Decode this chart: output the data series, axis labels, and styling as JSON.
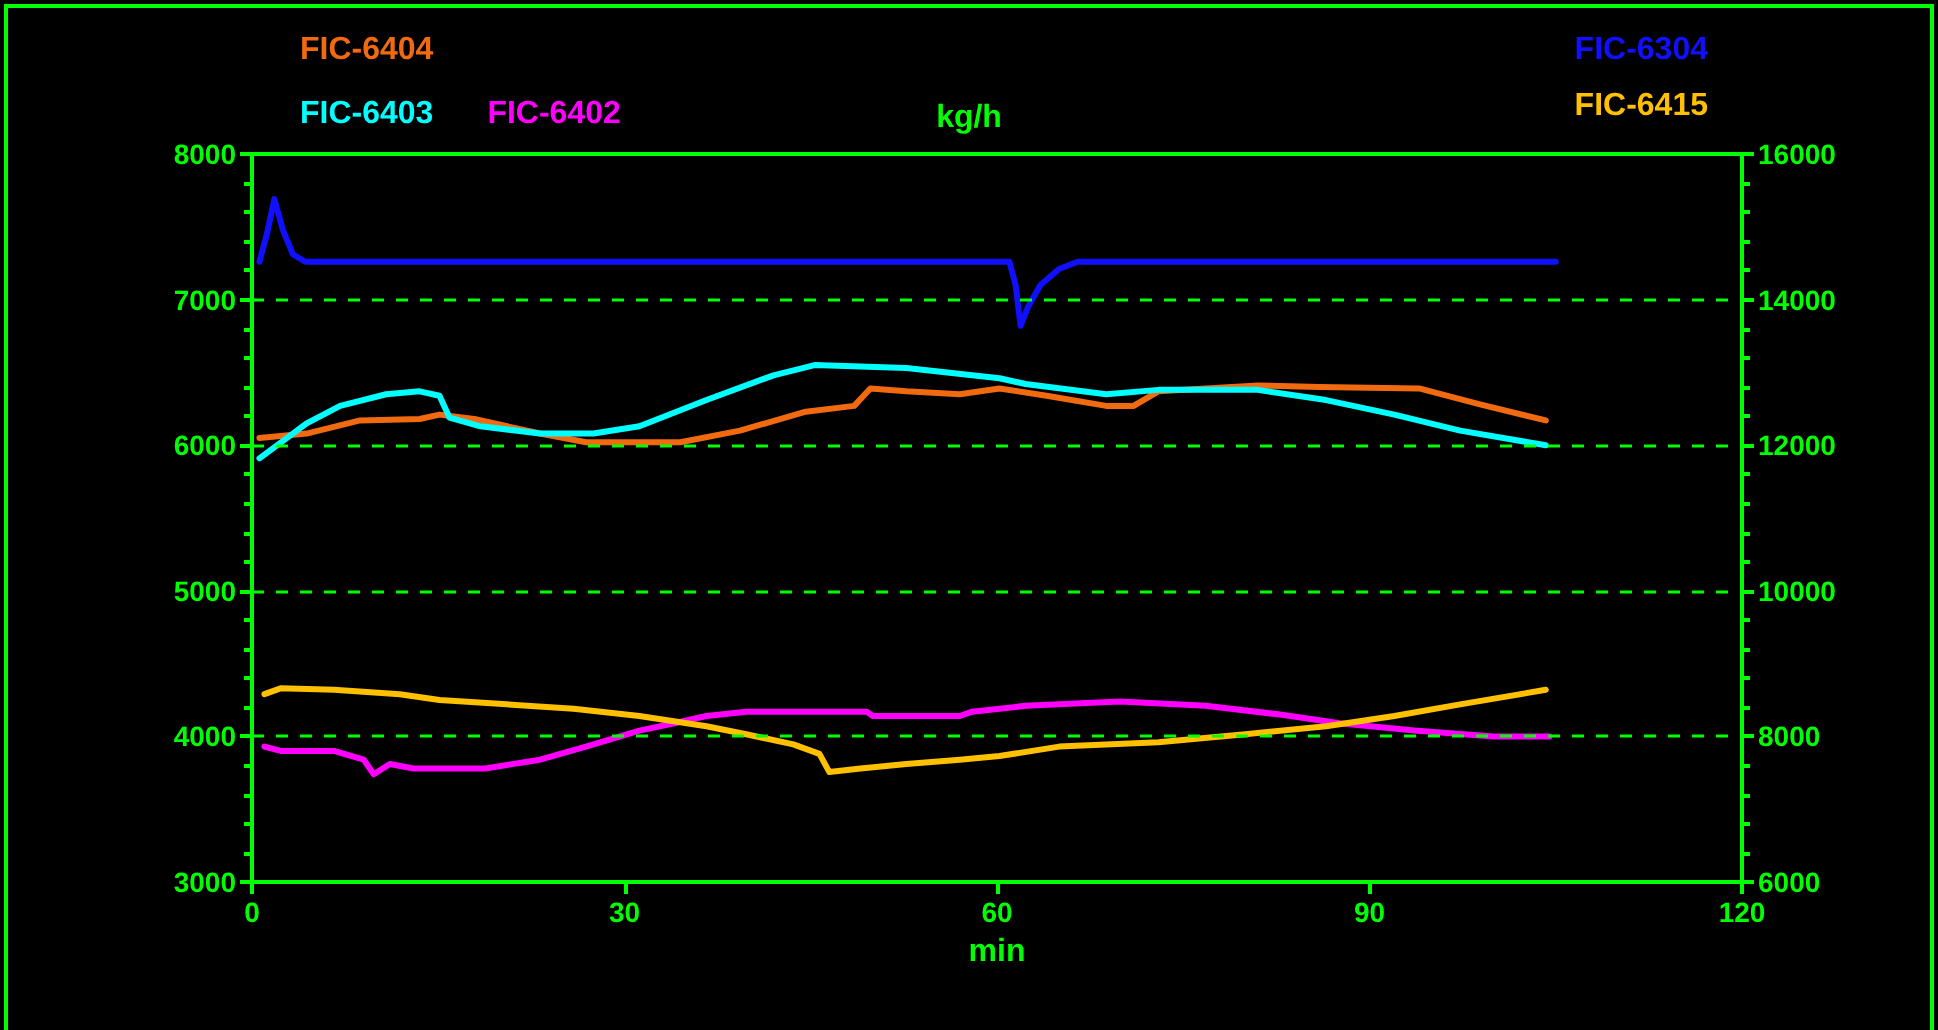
{
  "chart_data": {
    "type": "line",
    "title": "kg/h",
    "xlabel": "min",
    "xlim": [
      0,
      120
    ],
    "xticks": [
      0,
      30,
      60,
      90,
      120
    ],
    "ylim": [
      3000,
      8000
    ],
    "yticks": [
      3000,
      4000,
      5000,
      6000,
      7000,
      8000
    ],
    "y2lim": [
      6000,
      16000
    ],
    "y2ticks": [
      6000,
      8000,
      10000,
      12000,
      14000,
      16000
    ],
    "grid": "y",
    "legend": "top",
    "marker": "none",
    "line_style": "solid",
    "series": [
      {
        "name": "FIC-6404",
        "color": "#f26a10",
        "x": [
          0.6,
          4.4,
          8.7,
          13.5,
          15.1,
          17.9,
          23.2,
          26.9,
          34.5,
          39.3,
          44.6,
          48.5,
          49.8,
          52.7,
          57,
          60.2,
          64,
          68.8,
          71,
          73,
          81,
          86,
          94,
          98.9,
          104.2
        ],
        "values": [
          6050,
          6080,
          6170,
          6180,
          6210,
          6180,
          6080,
          6020,
          6020,
          6100,
          6230,
          6270,
          6390,
          6370,
          6350,
          6390,
          6340,
          6270,
          6270,
          6370,
          6410,
          6400,
          6390,
          6280,
          6170
        ]
      },
      {
        "name": "FIC-6403",
        "color": "#00ffff",
        "x": [
          0.6,
          4.4,
          7.1,
          10.8,
          13.5,
          15.1,
          15.9,
          18.4,
          23.2,
          27.5,
          31.2,
          36.6,
          42,
          45.3,
          52.7,
          60.2,
          62.3,
          68.8,
          73,
          81,
          86.5,
          92,
          97.3,
          104.2
        ],
        "values": [
          5910,
          6150,
          6270,
          6350,
          6370,
          6340,
          6190,
          6130,
          6080,
          6080,
          6130,
          6310,
          6480,
          6550,
          6530,
          6460,
          6420,
          6350,
          6380,
          6380,
          6310,
          6210,
          6100,
          6000
        ]
      },
      {
        "name": "FIC-6402",
        "color": "#ff00ff",
        "x": [
          1,
          2.3,
          6.6,
          9,
          9.8,
          11.1,
          13,
          18.8,
          23.2,
          26.9,
          31.2,
          34,
          36.6,
          39.8,
          49.5,
          50,
          57,
          58,
          62.3,
          69.9,
          76.8,
          82.8,
          87.6,
          93.6,
          100,
          104.5
        ],
        "values": [
          3930,
          3900,
          3900,
          3840,
          3740,
          3810,
          3780,
          3780,
          3840,
          3930,
          4040,
          4090,
          4140,
          4170,
          4170,
          4140,
          4140,
          4170,
          4210,
          4240,
          4210,
          4150,
          4090,
          4040,
          4000,
          4000
        ]
      },
      {
        "name": "FIC-6304",
        "color": "#1010ff",
        "axis": "y2",
        "x": [
          0.6,
          1.2,
          1.8,
          2.5,
          3.3,
          4.3,
          61,
          61.5,
          61.9,
          62.5,
          63.5,
          65,
          66.5,
          105
        ],
        "values": [
          14520,
          14900,
          15380,
          14950,
          14620,
          14520,
          14520,
          14200,
          13640,
          13900,
          14200,
          14420,
          14520,
          14520
        ]
      },
      {
        "name": "FIC-6415",
        "color": "#ffc000",
        "axis": "y2",
        "x": [
          1,
          2.3,
          6.6,
          11.9,
          15.1,
          20.5,
          25.9,
          31.2,
          36.6,
          39.8,
          43.6,
          45.7,
          46.5,
          49,
          52.7,
          57,
          60.2,
          65,
          73,
          80,
          86.5,
          92,
          97.3,
          104.2
        ],
        "values": [
          8580,
          8660,
          8640,
          8580,
          8500,
          8440,
          8380,
          8280,
          8140,
          8030,
          7890,
          7760,
          7510,
          7560,
          7620,
          7680,
          7730,
          7860,
          7920,
          8030,
          8140,
          8280,
          8440,
          8640
        ]
      }
    ]
  }
}
